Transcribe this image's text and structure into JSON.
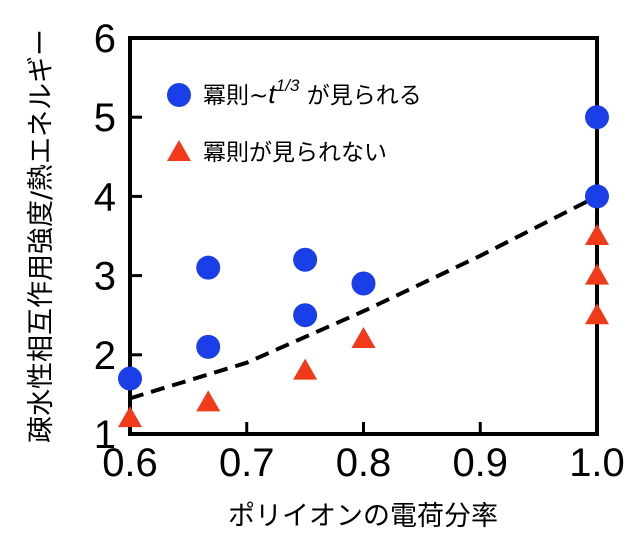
{
  "chart_data": {
    "type": "scatter",
    "xlabel": "ポリイオンの電荷分率",
    "ylabel": "疎水性相互作用強度/熱エネルギー",
    "xlim": [
      0.6,
      1.0
    ],
    "ylim": [
      1,
      6
    ],
    "xticks": [
      "0.6",
      "0.7",
      "0.8",
      "0.9",
      "1.0"
    ],
    "yticks": [
      "1",
      "2",
      "3",
      "4",
      "5",
      "6"
    ],
    "grid": false,
    "legend_position": "top-left",
    "series": [
      {
        "name": "冪則~t^{1/3} が見られる",
        "legend": {
          "prefix": "冪則~",
          "var": "t",
          "sup": "1/3",
          "suffix": " が見られる"
        },
        "marker": "circle",
        "color": "#1a3fe8",
        "points": [
          {
            "x": 0.6,
            "y": 1.7
          },
          {
            "x": 0.667,
            "y": 3.1
          },
          {
            "x": 0.667,
            "y": 2.1
          },
          {
            "x": 0.75,
            "y": 3.2
          },
          {
            "x": 0.75,
            "y": 2.5
          },
          {
            "x": 0.8,
            "y": 2.9
          },
          {
            "x": 1.0,
            "y": 5.0
          },
          {
            "x": 1.0,
            "y": 4.0
          }
        ]
      },
      {
        "name": "冪則が見られない",
        "marker": "triangle",
        "color": "#f03a1a",
        "points": [
          {
            "x": 0.6,
            "y": 1.2
          },
          {
            "x": 0.667,
            "y": 1.4
          },
          {
            "x": 0.75,
            "y": 1.8
          },
          {
            "x": 0.8,
            "y": 2.2
          },
          {
            "x": 1.0,
            "y": 3.5
          },
          {
            "x": 1.0,
            "y": 3.0
          },
          {
            "x": 1.0,
            "y": 2.5
          }
        ]
      }
    ],
    "fit_curve": {
      "style": "dashed",
      "color": "#000000",
      "points": [
        {
          "x": 0.6,
          "y": 1.45
        },
        {
          "x": 0.7,
          "y": 1.9
        },
        {
          "x": 0.8,
          "y": 2.55
        },
        {
          "x": 0.9,
          "y": 3.25
        },
        {
          "x": 1.0,
          "y": 4.0
        }
      ]
    }
  }
}
